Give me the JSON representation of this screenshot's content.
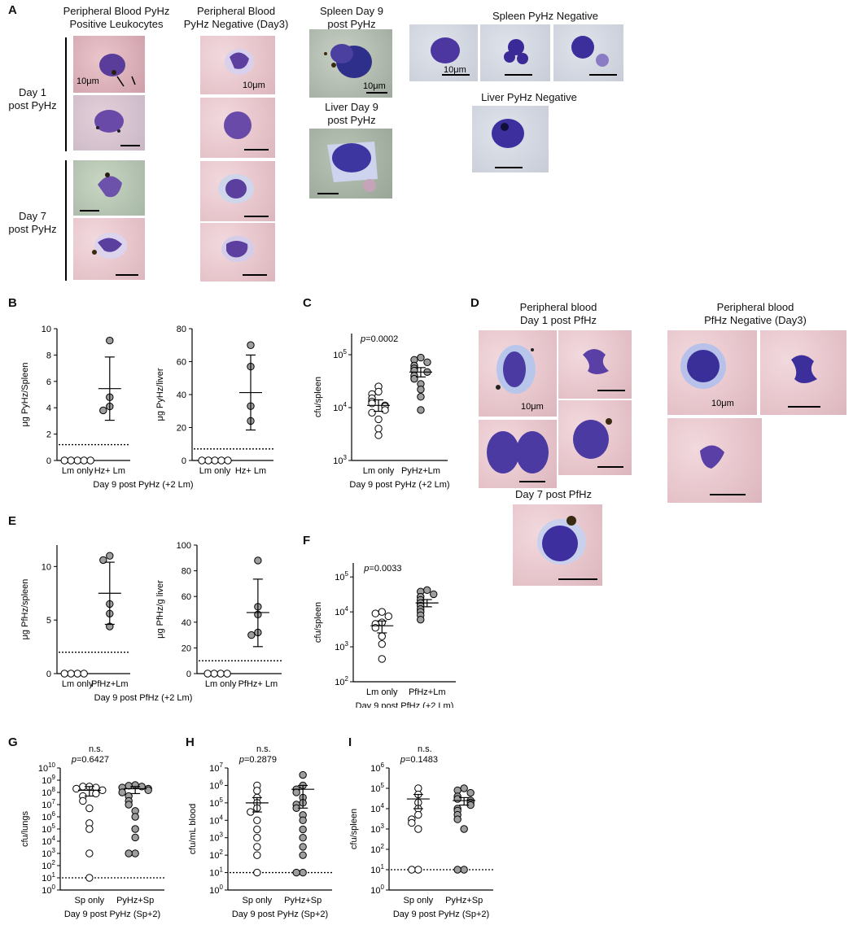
{
  "panels": {
    "A": {
      "letter": "A",
      "headers": {
        "pos_leuko_l1": "Peripheral Blood PyHz",
        "pos_leuko_l2": "Positive Leukocytes",
        "neg_blood_l1": "Peripheral Blood",
        "neg_blood_l2": "PyHz Negative (Day3)",
        "spleen_d9_l1": "Spleen Day 9",
        "spleen_d9_l2": "post PyHz",
        "liver_d9_l1": "Liver Day 9",
        "liver_d9_l2": "post PyHz",
        "spleen_neg": "Spleen PyHz Negative",
        "liver_neg": "Liver PyHz Negative"
      },
      "rows": {
        "day1_l1": "Day 1",
        "day1_l2": "post PyHz",
        "day7_l1": "Day 7",
        "day7_l2": "post PyHz"
      },
      "scale_label": "10μm"
    },
    "D": {
      "letter": "D",
      "left_l1": "Peripheral blood",
      "left_l2": "Day 1 post PfHz",
      "right_l1": "Peripheral blood",
      "right_l2": "PfHz Negative (Day3)",
      "day7": "Day 7 post PfHz",
      "scale_label": "10μm"
    }
  },
  "chart_data": [
    {
      "panel": "B",
      "type": "scatter",
      "ylabel": "μg PyHz/Spleen",
      "categories": [
        "Lm only",
        "Hz+ Lm"
      ],
      "ylim": [
        0,
        10
      ],
      "yticks": [
        0,
        2,
        4,
        6,
        8,
        10
      ],
      "scale": "linear",
      "series": [
        {
          "values": [
            0,
            0,
            0,
            0,
            0
          ],
          "fill": "#ffffff"
        },
        {
          "values": [
            9.1,
            4.8,
            4.1,
            3.8
          ],
          "fill": "#9e9e9e",
          "mean": 5.45,
          "err_low": 3.05,
          "err_high": 7.85
        }
      ],
      "threshold": 1.2
    },
    {
      "panel": "B2",
      "type": "scatter",
      "ylabel": "μg PyHz/liver",
      "categories": [
        "Lm only",
        "Hz+ Lm"
      ],
      "ylim": [
        0,
        80
      ],
      "yticks": [
        0,
        20,
        40,
        60,
        80
      ],
      "scale": "linear",
      "series": [
        {
          "values": [
            0,
            0,
            0,
            0,
            0
          ],
          "fill": "#ffffff"
        },
        {
          "values": [
            70,
            57,
            33,
            24
          ],
          "fill": "#9e9e9e",
          "mean": 41.2,
          "err_low": 18.5,
          "err_high": 64
        }
      ],
      "threshold": 7,
      "xgroup": "Day 9 post PyHz (+2 Lm)"
    },
    {
      "panel": "C",
      "type": "scatter",
      "ylabel": "cfu/spleen",
      "pvalue": "=0.0002",
      "categories": [
        "Lm only",
        "PyHz+Lm"
      ],
      "ylim": [
        3,
        5.4
      ],
      "scale": "log",
      "ytick_bases": [
        "10",
        "10",
        "10"
      ],
      "ytick_exps": [
        "3",
        "4",
        "5"
      ],
      "ytick_pows": [
        3,
        4,
        5
      ],
      "series": [
        {
          "values": [
            25000,
            20000,
            18000,
            15000,
            13000,
            12000,
            11000,
            10500,
            9000,
            8000,
            6000,
            4000,
            3000
          ],
          "fill": "#ffffff",
          "mean": 11000,
          "err_low": 8500,
          "err_high": 14000
        },
        {
          "values": [
            88000,
            80000,
            72000,
            62000,
            55000,
            50000,
            47000,
            40000,
            35000,
            28000,
            22000,
            16000,
            9000
          ],
          "fill": "#9e9e9e",
          "mean": 47000,
          "err_low": 38000,
          "err_high": 57000
        }
      ],
      "xgroup": "Day 9 post PyHz (+2 Lm)"
    },
    {
      "panel": "E",
      "type": "scatter",
      "ylabel": "μg PfHz/spleen",
      "categories": [
        "Lm only",
        "PfHz+Lm"
      ],
      "ylim": [
        0,
        12
      ],
      "yticks": [
        0,
        5,
        10
      ],
      "scale": "linear",
      "series": [
        {
          "values": [
            0,
            0,
            0,
            0
          ],
          "fill": "#ffffff"
        },
        {
          "values": [
            11,
            10.6,
            6.5,
            5.6,
            4.4
          ],
          "fill": "#9e9e9e",
          "mean": 7.5,
          "err_low": 4.6,
          "err_high": 10.4
        }
      ],
      "threshold": 2
    },
    {
      "panel": "E2",
      "type": "scatter",
      "ylabel": "μg PfHz/g liver",
      "categories": [
        "Lm only",
        "PfHz+ Lm"
      ],
      "ylim": [
        0,
        100
      ],
      "yticks": [
        0,
        20,
        40,
        60,
        80,
        100
      ],
      "scale": "linear",
      "series": [
        {
          "values": [
            0,
            0,
            0,
            0
          ],
          "fill": "#ffffff"
        },
        {
          "values": [
            88,
            52,
            46,
            32,
            30
          ],
          "fill": "#9e9e9e",
          "mean": 47.5,
          "err_low": 21,
          "err_high": 73.5
        }
      ],
      "threshold": 10,
      "xgroup": "Day 9 post PfHz (+2 Lm)"
    },
    {
      "panel": "F",
      "type": "scatter",
      "ylabel": "cfu/spleen",
      "pvalue": "=0.0033",
      "categories": [
        "Lm only",
        "PfHz+Lm"
      ],
      "ylim": [
        2,
        5.4
      ],
      "scale": "log",
      "ytick_bases": [
        "10",
        "10",
        "10",
        "10"
      ],
      "ytick_exps": [
        "2",
        "3",
        "4",
        "5"
      ],
      "ytick_pows": [
        2,
        3,
        4,
        5
      ],
      "series": [
        {
          "values": [
            10000,
            9000,
            7500,
            5000,
            4500,
            3500,
            2000,
            1200,
            450
          ],
          "fill": "#ffffff",
          "mean": 4000,
          "err_low": 2500,
          "err_high": 5500
        },
        {
          "values": [
            42000,
            38000,
            32000,
            27000,
            22000,
            18000,
            15000,
            12000,
            10000,
            8000,
            6000
          ],
          "fill": "#9e9e9e",
          "mean": 18000,
          "err_low": 14000,
          "err_high": 22500
        }
      ],
      "xgroup": "Day 9 post PfHz (+2 Lm)"
    },
    {
      "panel": "G",
      "type": "scatter",
      "ylabel": "cfu/lungs",
      "ns": "n.s.",
      "pvalue": "=0.6427",
      "categories": [
        "Sp only",
        "PyHz+Sp"
      ],
      "ylim": [
        0,
        10
      ],
      "scale": "log",
      "ytick_bases": [
        "10",
        "10",
        "10",
        "10",
        "10",
        "10",
        "10",
        "10",
        "10",
        "10",
        "10"
      ],
      "ytick_exps": [
        "0",
        "1",
        "2",
        "3",
        "4",
        "5",
        "6",
        "7",
        "8",
        "9",
        "10"
      ],
      "ytick_pows": [
        0,
        1,
        2,
        3,
        4,
        5,
        6,
        7,
        8,
        9,
        10
      ],
      "series": [
        {
          "values": [
            300000000.0,
            300000000.0,
            250000000.0,
            200000000.0,
            150000000.0,
            80000000.0,
            50000000.0,
            20000000.0,
            5000000.0,
            300000.0,
            100000.0,
            1000.0,
            10.0
          ],
          "fill": "#ffffff",
          "mean": 150000000.0,
          "err_low": 50000000.0,
          "err_high": 300000000.0
        },
        {
          "values": [
            400000000.0,
            350000000.0,
            300000000.0,
            250000000.0,
            200000000.0,
            150000000.0,
            100000000.0,
            50000000.0,
            20000000.0,
            10000000.0,
            3000000.0,
            1000000.0,
            100000.0,
            20000.0,
            1000.0,
            1000.0
          ],
          "fill": "#9e9e9e",
          "mean": 200000000.0,
          "err_low": 80000000.0,
          "err_high": 300000000.0
        }
      ],
      "threshold": 10,
      "xgroup": "Day 9 post PyHz (Sp+2)"
    },
    {
      "panel": "H",
      "type": "scatter",
      "ylabel": "cfu/mL blood",
      "ns": "n.s.",
      "pvalue": "=0.2879",
      "categories": [
        "Sp only",
        "PyHz+Sp"
      ],
      "ylim": [
        0,
        7
      ],
      "scale": "log",
      "ytick_bases": [
        "10",
        "10",
        "10",
        "10",
        "10",
        "10",
        "10",
        "10"
      ],
      "ytick_exps": [
        "0",
        "1",
        "2",
        "3",
        "4",
        "5",
        "6",
        "7"
      ],
      "ytick_pows": [
        0,
        1,
        2,
        3,
        4,
        5,
        6,
        7
      ],
      "series": [
        {
          "values": [
            1000000.0,
            500000.0,
            200000.0,
            100000.0,
            50000.0,
            30000.0,
            10000.0,
            3000.0,
            1000.0,
            300.0,
            100.0,
            10.0
          ],
          "fill": "#ffffff",
          "mean": 100000.0,
          "err_low": 30000.0,
          "err_high": 200000.0
        },
        {
          "values": [
            4000000.0,
            1000000.0,
            600000.0,
            400000.0,
            200000.0,
            100000.0,
            80000.0,
            50000.0,
            20000.0,
            10000.0,
            3000.0,
            1000.0,
            300.0,
            100.0,
            10.0,
            10.0
          ],
          "fill": "#9e9e9e",
          "mean": 600000.0,
          "err_low": 50000.0,
          "err_high": 1000000.0
        }
      ],
      "threshold": 10,
      "xgroup": "Day 9 post PyHz (Sp+2)"
    },
    {
      "panel": "I",
      "type": "scatter",
      "ylabel": "cfu/spleen",
      "ns": "n.s.",
      "pvalue": "=0.1483",
      "categories": [
        "Sp only",
        "PyHz+Sp"
      ],
      "ylim": [
        0,
        6
      ],
      "scale": "log",
      "ytick_bases": [
        "10",
        "10",
        "10",
        "10",
        "10",
        "10",
        "10"
      ],
      "ytick_exps": [
        "0",
        "1",
        "2",
        "3",
        "4",
        "5",
        "6"
      ],
      "ytick_pows": [
        0,
        1,
        2,
        3,
        4,
        5,
        6
      ],
      "series": [
        {
          "values": [
            100000.0,
            50000.0,
            20000.0,
            10000.0,
            5000.0,
            3000.0,
            2000.0,
            1000.0,
            10.0,
            10.0
          ],
          "fill": "#ffffff",
          "mean": 30000.0,
          "err_low": 10000.0,
          "err_high": 50000.0
        },
        {
          "values": [
            100000.0,
            80000.0,
            60000.0,
            40000.0,
            30000.0,
            25000.0,
            20000.0,
            15000.0,
            10000.0,
            8000.0,
            5000.0,
            3000.0,
            1000.0,
            10.0,
            10.0
          ],
          "fill": "#9e9e9e",
          "mean": 25000.0,
          "err_low": 15000.0,
          "err_high": 35000.0
        }
      ],
      "threshold": 10,
      "xgroup": "Day 9 post PyHz (Sp+2)"
    }
  ],
  "pvalue_prefix": "p"
}
